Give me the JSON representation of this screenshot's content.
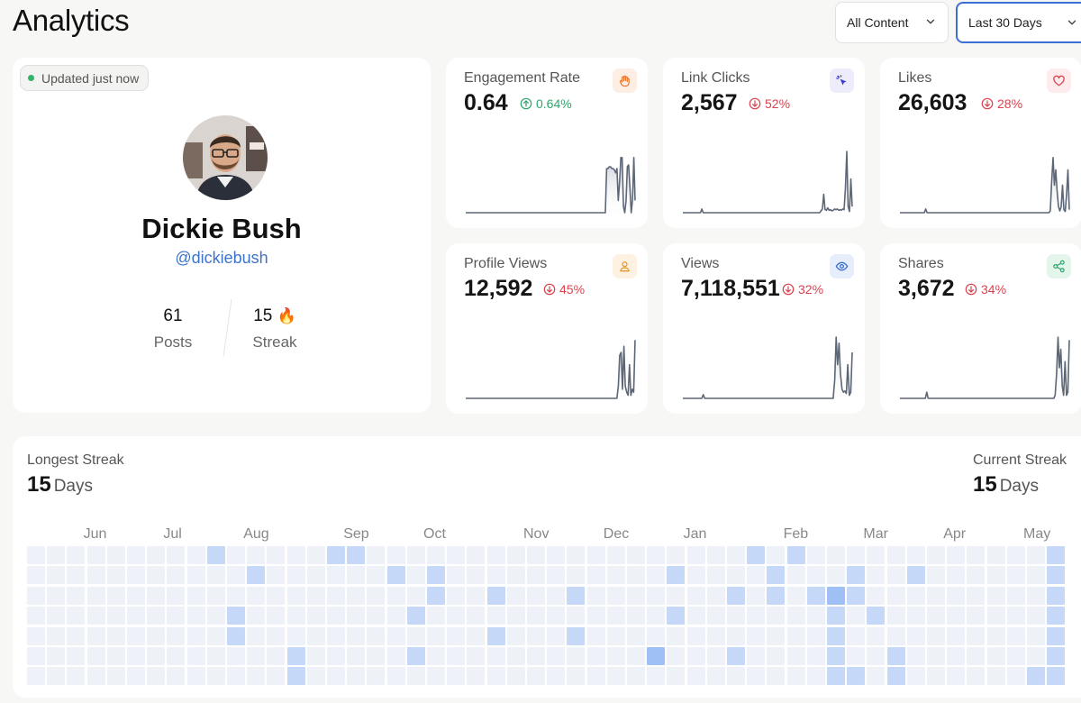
{
  "header": {
    "title": "Analytics",
    "filter_content": "All Content",
    "filter_range": "Last 30 Days"
  },
  "profile": {
    "status": "Updated just now",
    "name": "Dickie Bush",
    "handle": "@dickiebush",
    "posts_value": "61",
    "posts_label": "Posts",
    "streak_value": "15",
    "streak_emoji": "🔥",
    "streak_label": "Streak"
  },
  "metrics": [
    {
      "title": "Engagement Rate",
      "value": "0.64",
      "change": "0.64%",
      "direction": "up",
      "icon": "hand-icon",
      "icon_color": "#e8742c",
      "icon_bg": "#fdeee4",
      "series": [
        0,
        0,
        0,
        0,
        0,
        0,
        0,
        0,
        0,
        0,
        0,
        0,
        0,
        0,
        0,
        0,
        0,
        0,
        0,
        0,
        0,
        0,
        0,
        0,
        0,
        0,
        0,
        0,
        0,
        0,
        0,
        0,
        0,
        0,
        0,
        0,
        0,
        0,
        0,
        0,
        0,
        0,
        0,
        0,
        0,
        0,
        0,
        0,
        0,
        0,
        0,
        0,
        0,
        0,
        0,
        0,
        0,
        0,
        0,
        0,
        0,
        0,
        0,
        0,
        0,
        0,
        0,
        0,
        0,
        0,
        0,
        0,
        0,
        0,
        0,
        0,
        0,
        0,
        0,
        0,
        0,
        0,
        0,
        0,
        0,
        0,
        0,
        0,
        0,
        0,
        0,
        0,
        0,
        0,
        0,
        0,
        0,
        0,
        0,
        0,
        0,
        0,
        0,
        0,
        0,
        0,
        0,
        0,
        0,
        0.72,
        0.72,
        0.75,
        0.75,
        0.72,
        0.72,
        0.7,
        0.65,
        0.72,
        0.2,
        0.5,
        0.9,
        0.9,
        0.1,
        0,
        0.2,
        0.75,
        0.78,
        0.4,
        0,
        0.2,
        0.9,
        0.2
      ]
    },
    {
      "title": "Link Clicks",
      "value": "2,567",
      "change": "52%",
      "direction": "down",
      "icon": "cursor-click-icon",
      "icon_color": "#3e3ad0",
      "icon_bg": "#ececfb",
      "series": [
        0,
        0,
        0,
        0,
        0,
        0,
        0,
        0,
        0,
        0,
        0,
        0,
        0,
        0,
        0.06,
        0,
        0,
        0,
        0,
        0,
        0,
        0,
        0,
        0,
        0,
        0,
        0,
        0,
        0,
        0,
        0,
        0,
        0,
        0,
        0,
        0,
        0,
        0,
        0,
        0,
        0,
        0,
        0,
        0,
        0,
        0,
        0,
        0,
        0,
        0,
        0,
        0,
        0,
        0,
        0,
        0,
        0,
        0,
        0,
        0,
        0,
        0,
        0,
        0,
        0,
        0,
        0,
        0,
        0,
        0,
        0,
        0,
        0,
        0,
        0,
        0,
        0,
        0,
        0,
        0,
        0,
        0,
        0,
        0,
        0,
        0,
        0,
        0,
        0,
        0,
        0,
        0,
        0,
        0,
        0,
        0,
        0,
        0,
        0,
        0,
        0,
        0,
        0.03,
        0.06,
        0.3,
        0.05,
        0.04,
        0.08,
        0.04,
        0.05,
        0.03,
        0.04,
        0.06,
        0.05,
        0.06,
        0.04,
        0.05,
        0.04,
        0.06,
        0.05,
        0.4,
        1.0,
        0.1,
        0.02,
        0.55,
        0.1
      ]
    },
    {
      "title": "Likes",
      "value": "26,603",
      "change": "28%",
      "direction": "down",
      "icon": "heart-icon",
      "icon_color": "#d9434f",
      "icon_bg": "#fdecee",
      "series": [
        0,
        0,
        0,
        0,
        0,
        0,
        0,
        0,
        0,
        0,
        0,
        0,
        0,
        0,
        0,
        0,
        0,
        0,
        0,
        0.06,
        0,
        0,
        0,
        0,
        0,
        0,
        0,
        0,
        0,
        0,
        0,
        0,
        0,
        0,
        0,
        0,
        0,
        0,
        0,
        0,
        0,
        0,
        0,
        0,
        0,
        0,
        0,
        0,
        0,
        0,
        0,
        0,
        0,
        0,
        0,
        0,
        0,
        0,
        0,
        0,
        0,
        0,
        0,
        0,
        0,
        0,
        0,
        0,
        0,
        0,
        0,
        0,
        0,
        0,
        0,
        0,
        0,
        0,
        0,
        0,
        0,
        0,
        0,
        0,
        0,
        0,
        0,
        0,
        0,
        0,
        0,
        0,
        0,
        0,
        0,
        0,
        0,
        0,
        0,
        0,
        0,
        0,
        0,
        0,
        0,
        0,
        0,
        0,
        0,
        0,
        0,
        0.03,
        0.5,
        0.9,
        0.45,
        0.7,
        0.35,
        0.1,
        0.03,
        0.1,
        0.45,
        0.05,
        0.02,
        0.3,
        0.7,
        0.05
      ]
    },
    {
      "title": "Profile Views",
      "value": "12,592",
      "change": "45%",
      "direction": "down",
      "icon": "person-icon",
      "icon_color": "#e8992c",
      "icon_bg": "#fdf2e2",
      "series": [
        0,
        0,
        0,
        0,
        0,
        0,
        0,
        0,
        0,
        0,
        0,
        0,
        0,
        0,
        0,
        0,
        0,
        0,
        0,
        0,
        0,
        0,
        0,
        0,
        0,
        0,
        0,
        0,
        0,
        0,
        0,
        0,
        0,
        0,
        0,
        0,
        0,
        0,
        0,
        0,
        0,
        0,
        0,
        0,
        0,
        0,
        0,
        0,
        0,
        0,
        0,
        0,
        0,
        0,
        0,
        0,
        0,
        0,
        0,
        0,
        0,
        0,
        0,
        0,
        0,
        0,
        0,
        0,
        0,
        0,
        0,
        0,
        0,
        0,
        0,
        0,
        0,
        0,
        0,
        0,
        0,
        0,
        0,
        0,
        0,
        0,
        0,
        0,
        0,
        0,
        0,
        0,
        0,
        0,
        0,
        0,
        0,
        0,
        0,
        0,
        0,
        0,
        0,
        0,
        0,
        0,
        0,
        0,
        0,
        0.2,
        0.7,
        0.75,
        0.15,
        0.85,
        0.2,
        0.1,
        0.05,
        0.55,
        0.05,
        0.15,
        0.1,
        0.95
      ]
    },
    {
      "title": "Views",
      "value": "7,118,551",
      "change": "32%",
      "direction": "down",
      "icon": "eye-icon",
      "icon_color": "#3e6fd0",
      "icon_bg": "#e7eefb",
      "series": [
        0,
        0,
        0,
        0,
        0,
        0,
        0,
        0,
        0,
        0,
        0,
        0,
        0,
        0,
        0.06,
        0,
        0,
        0,
        0,
        0,
        0,
        0,
        0,
        0,
        0,
        0,
        0,
        0,
        0,
        0,
        0,
        0,
        0,
        0,
        0,
        0,
        0,
        0,
        0,
        0,
        0,
        0,
        0,
        0,
        0,
        0,
        0,
        0,
        0,
        0,
        0,
        0,
        0,
        0,
        0,
        0,
        0,
        0,
        0,
        0,
        0,
        0,
        0,
        0,
        0,
        0,
        0,
        0,
        0,
        0,
        0,
        0,
        0,
        0,
        0,
        0,
        0,
        0,
        0,
        0,
        0,
        0,
        0,
        0,
        0,
        0,
        0,
        0,
        0,
        0,
        0,
        0,
        0,
        0,
        0,
        0,
        0,
        0,
        0,
        0,
        0,
        0,
        0,
        0,
        0.3,
        1.0,
        0.55,
        0.9,
        0.4,
        0.15,
        0.1,
        0.12,
        0.08,
        0.55,
        0.05,
        0.1,
        0.75
      ]
    },
    {
      "title": "Shares",
      "value": "3,672",
      "change": "34%",
      "direction": "down",
      "icon": "share-icon",
      "icon_color": "#2fa66a",
      "icon_bg": "#e4f5ec",
      "series": [
        0,
        0,
        0,
        0,
        0,
        0,
        0,
        0,
        0,
        0,
        0,
        0,
        0,
        0,
        0,
        0,
        0,
        0,
        0,
        0.1,
        0,
        0,
        0,
        0,
        0,
        0,
        0,
        0,
        0,
        0,
        0,
        0,
        0,
        0,
        0,
        0,
        0,
        0,
        0,
        0,
        0,
        0,
        0,
        0,
        0,
        0,
        0,
        0,
        0,
        0,
        0,
        0,
        0,
        0,
        0,
        0,
        0,
        0,
        0,
        0,
        0,
        0,
        0,
        0,
        0,
        0,
        0,
        0,
        0,
        0,
        0,
        0,
        0,
        0,
        0,
        0,
        0,
        0,
        0,
        0,
        0,
        0,
        0,
        0,
        0,
        0,
        0,
        0,
        0,
        0,
        0,
        0,
        0,
        0,
        0,
        0,
        0,
        0,
        0,
        0,
        0,
        0,
        0,
        0,
        0,
        0,
        0,
        0,
        0,
        0,
        0.05,
        0.4,
        1.0,
        0.5,
        0.8,
        0.2,
        0.05,
        0.6,
        0.05,
        0.1,
        0.95
      ]
    }
  ],
  "streak": {
    "longest_label": "Longest Streak",
    "longest_value": "15",
    "longest_unit": "Days",
    "current_label": "Current Streak",
    "current_value": "15",
    "current_unit": "Days",
    "months": [
      "Jun",
      "Jul",
      "Aug",
      "Sep",
      "Oct",
      "Nov",
      "Dec",
      "Jan",
      "Feb",
      "Mar",
      "Apr",
      "May"
    ],
    "month_cols": [
      3,
      7,
      11,
      16,
      20,
      25,
      29,
      33,
      38,
      42,
      46,
      50
    ],
    "colors": [
      "#eef2f8",
      "#c5d8f7",
      "#9ec0f4"
    ],
    "cells": [
      [
        9,
        0,
        1
      ],
      [
        15,
        0,
        1
      ],
      [
        16,
        0,
        1
      ],
      [
        36,
        0,
        1
      ],
      [
        38,
        0,
        1
      ],
      [
        51,
        0,
        1
      ],
      [
        52,
        0,
        1
      ],
      [
        11,
        1,
        1
      ],
      [
        18,
        1,
        1
      ],
      [
        20,
        1,
        1
      ],
      [
        32,
        1,
        1
      ],
      [
        37,
        1,
        1
      ],
      [
        41,
        1,
        1
      ],
      [
        44,
        1,
        1
      ],
      [
        51,
        1,
        1
      ],
      [
        52,
        1,
        1
      ],
      [
        20,
        2,
        1
      ],
      [
        23,
        2,
        1
      ],
      [
        27,
        2,
        1
      ],
      [
        35,
        2,
        1
      ],
      [
        37,
        2,
        1
      ],
      [
        39,
        2,
        1
      ],
      [
        40,
        2,
        2
      ],
      [
        41,
        2,
        1
      ],
      [
        51,
        2,
        1
      ],
      [
        52,
        2,
        1
      ],
      [
        10,
        3,
        1
      ],
      [
        19,
        3,
        1
      ],
      [
        32,
        3,
        1
      ],
      [
        40,
        3,
        1
      ],
      [
        42,
        3,
        1
      ],
      [
        51,
        3,
        1
      ],
      [
        52,
        3,
        1
      ],
      [
        10,
        4,
        1
      ],
      [
        23,
        4,
        1
      ],
      [
        27,
        4,
        1
      ],
      [
        40,
        4,
        1
      ],
      [
        51,
        4,
        1
      ],
      [
        52,
        4,
        1
      ],
      [
        13,
        5,
        1
      ],
      [
        19,
        5,
        1
      ],
      [
        31,
        5,
        2
      ],
      [
        35,
        5,
        1
      ],
      [
        40,
        5,
        1
      ],
      [
        43,
        5,
        1
      ],
      [
        51,
        5,
        1
      ],
      [
        52,
        5,
        1
      ],
      [
        13,
        6,
        1
      ],
      [
        40,
        6,
        1
      ],
      [
        41,
        6,
        1
      ],
      [
        43,
        6,
        1
      ],
      [
        50,
        6,
        1
      ],
      [
        51,
        6,
        1
      ],
      [
        52,
        6,
        1
      ]
    ]
  }
}
